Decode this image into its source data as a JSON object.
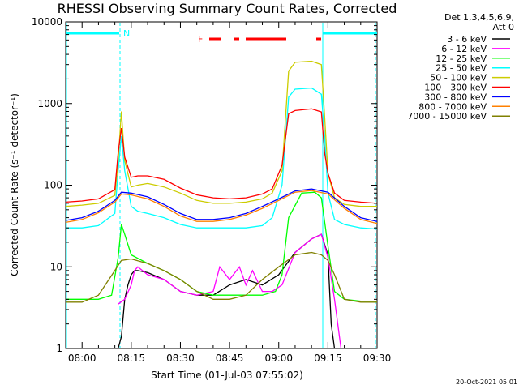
{
  "chart_data": {
    "type": "line",
    "title": "RHESSI Observing Summary Count Rates, Corrected",
    "xlabel": "Start Time (01-Jul-03 07:55:02)",
    "ylabel": "Corrected Count Rate (s⁻¹ detector⁻¹)",
    "yscale": "log",
    "ylim": [
      1,
      10000
    ],
    "xlim_minutes": [
      0,
      95
    ],
    "x_ticks": [
      {
        "label": "08:00",
        "minute": 5
      },
      {
        "label": "08:15",
        "minute": 20
      },
      {
        "label": "08:30",
        "minute": 35
      },
      {
        "label": "08:45",
        "minute": 50
      },
      {
        "label": "09:00",
        "minute": 65
      },
      {
        "label": "09:15",
        "minute": 80
      },
      {
        "label": "09:30",
        "minute": 95
      }
    ],
    "y_ticks": [
      {
        "label": "1",
        "value": 1
      },
      {
        "label": "10",
        "value": 10
      },
      {
        "label": "100",
        "value": 100
      },
      {
        "label": "1000",
        "value": 1000
      },
      {
        "label": "10000",
        "value": 10000
      }
    ],
    "legend_header": [
      "Det 1,3,4,5,6,9,",
      "Att 0"
    ],
    "series": [
      {
        "name": "3 - 6 keV",
        "color": "#000000",
        "x": [
          16,
          17,
          18,
          19,
          20,
          21,
          22,
          25,
          30,
          35,
          40,
          45,
          50,
          55,
          60,
          65,
          70,
          75,
          78,
          80,
          81,
          82
        ],
        "y": [
          1,
          1.4,
          4,
          6,
          8,
          9,
          9,
          8.5,
          7,
          5,
          4.5,
          4.5,
          6,
          7,
          6,
          8,
          15,
          22,
          25,
          14,
          2,
          1
        ]
      },
      {
        "name": "6 - 12 keV",
        "color": "#ff00ff",
        "x": [
          16,
          18,
          20,
          21,
          22,
          25,
          30,
          35,
          40,
          45,
          47,
          50,
          53,
          55,
          57,
          60,
          63,
          66,
          70,
          75,
          78,
          80,
          82,
          84
        ],
        "y": [
          3.5,
          4,
          6,
          9,
          10,
          8,
          7,
          5,
          4.5,
          5,
          10,
          7,
          10,
          6,
          9,
          5,
          5,
          6,
          15,
          22,
          25,
          13,
          4,
          1
        ]
      },
      {
        "name": "12 - 25 keV",
        "color": "#00ff00",
        "x": [
          0,
          10,
          14,
          16,
          17,
          18,
          20,
          25,
          30,
          35,
          40,
          45,
          50,
          55,
          60,
          64,
          66,
          68,
          72,
          76,
          78,
          80,
          82,
          85,
          90,
          95
        ],
        "y": [
          4,
          4,
          4.5,
          13,
          33,
          25,
          14,
          11,
          9,
          7,
          5,
          4.5,
          4.5,
          4.5,
          4.5,
          5,
          8,
          40,
          80,
          82,
          70,
          18,
          5,
          4,
          3.8,
          3.8
        ]
      },
      {
        "name": "25 - 50 keV",
        "color": "#00ffff",
        "x": [
          0,
          5,
          10,
          15,
          16,
          17,
          18,
          20,
          22,
          25,
          30,
          35,
          40,
          45,
          50,
          55,
          60,
          63,
          66,
          68,
          70,
          75,
          78,
          79,
          80,
          82,
          85,
          90,
          95
        ],
        "y": [
          30,
          30,
          32,
          45,
          150,
          400,
          150,
          55,
          48,
          45,
          40,
          33,
          30,
          30,
          30,
          30,
          32,
          40,
          100,
          1200,
          1500,
          1550,
          1300,
          400,
          80,
          38,
          33,
          30,
          29
        ]
      },
      {
        "name": "50 - 100 keV",
        "color": "#cccc00",
        "x": [
          0,
          5,
          10,
          15,
          16,
          17,
          18,
          20,
          22,
          25,
          30,
          35,
          40,
          45,
          50,
          55,
          60,
          63,
          66,
          68,
          70,
          75,
          78,
          79,
          80,
          82,
          85,
          90,
          95
        ],
        "y": [
          55,
          57,
          60,
          75,
          200,
          800,
          200,
          95,
          100,
          105,
          95,
          80,
          65,
          60,
          60,
          62,
          68,
          80,
          150,
          2500,
          3200,
          3300,
          3000,
          700,
          140,
          70,
          58,
          55,
          55
        ]
      },
      {
        "name": "100 - 300 keV",
        "color": "#ff0000",
        "x": [
          0,
          5,
          10,
          15,
          16,
          17,
          18,
          20,
          22,
          25,
          30,
          35,
          40,
          45,
          50,
          55,
          60,
          63,
          66,
          68,
          70,
          75,
          78,
          79,
          80,
          82,
          85,
          90,
          95
        ],
        "y": [
          62,
          64,
          68,
          88,
          250,
          500,
          220,
          125,
          130,
          130,
          118,
          92,
          76,
          70,
          68,
          70,
          78,
          90,
          175,
          750,
          820,
          860,
          790,
          250,
          140,
          80,
          65,
          62,
          60
        ]
      },
      {
        "name": "300 - 800 keV",
        "color": "#0000ff",
        "x": [
          0,
          5,
          10,
          15,
          17,
          20,
          25,
          30,
          35,
          40,
          45,
          50,
          55,
          60,
          65,
          70,
          75,
          80,
          85,
          90,
          95
        ],
        "y": [
          37,
          40,
          48,
          65,
          82,
          80,
          72,
          58,
          45,
          38,
          38,
          40,
          45,
          55,
          68,
          85,
          90,
          82,
          55,
          40,
          36
        ]
      },
      {
        "name": "800 - 7000 keV",
        "color": "#ff8000",
        "x": [
          0,
          5,
          10,
          15,
          17,
          20,
          25,
          30,
          35,
          40,
          45,
          50,
          55,
          60,
          65,
          70,
          75,
          80,
          85,
          90,
          95
        ],
        "y": [
          35,
          38,
          46,
          62,
          78,
          76,
          68,
          55,
          42,
          36,
          36,
          38,
          43,
          52,
          65,
          82,
          86,
          78,
          52,
          38,
          34
        ]
      },
      {
        "name": "7000 - 15000 keV",
        "color": "#808000",
        "x": [
          0,
          5,
          10,
          15,
          17,
          20,
          25,
          30,
          35,
          40,
          45,
          50,
          55,
          60,
          65,
          70,
          75,
          78,
          80,
          82,
          85,
          90,
          95
        ],
        "y": [
          3.7,
          3.7,
          4.5,
          9,
          12,
          12.5,
          11,
          9,
          7,
          5,
          4,
          4,
          4.5,
          7,
          10,
          14,
          15,
          14,
          12,
          8,
          4,
          3.7,
          3.7
        ]
      }
    ],
    "annotations": {
      "night_marker": "N",
      "flare_marker": "F"
    },
    "footer_timestamp": "20-Oct-2021 05:01"
  }
}
